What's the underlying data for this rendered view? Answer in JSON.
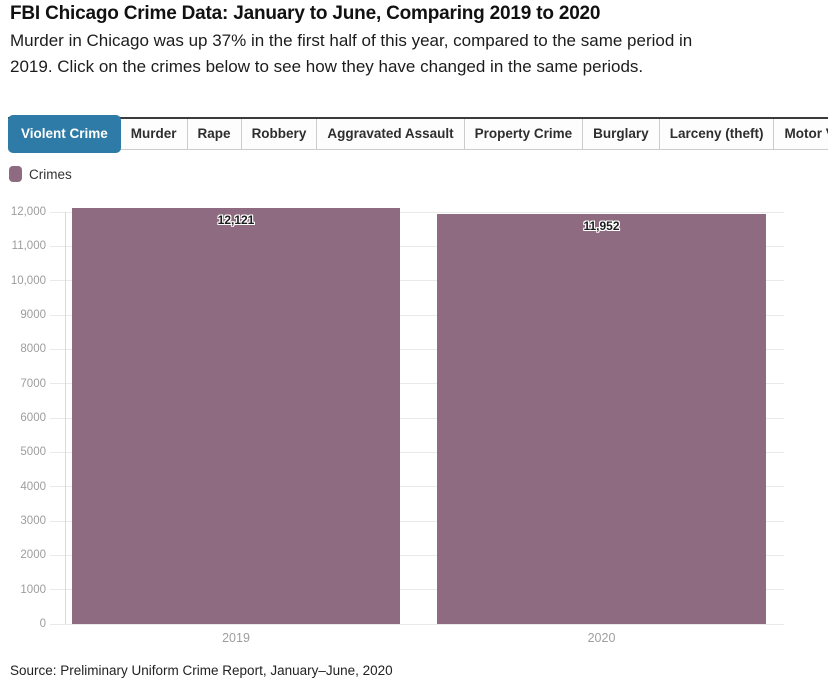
{
  "header": {
    "title": "FBI Chicago Crime Data: January to June, Comparing 2019 to 2020",
    "subtitle": "Murder in Chicago was up 37% in the first half of this year, compared to the same period in 2019. Click on the crimes below to see how they have changed in the same periods."
  },
  "tabs": [
    {
      "label": "Violent Crime",
      "active": true
    },
    {
      "label": "Murder",
      "active": false
    },
    {
      "label": "Rape",
      "active": false
    },
    {
      "label": "Robbery",
      "active": false
    },
    {
      "label": "Aggravated Assault",
      "active": false
    },
    {
      "label": "Property Crime",
      "active": false
    },
    {
      "label": "Burglary",
      "active": false
    },
    {
      "label": "Larceny (theft)",
      "active": false
    },
    {
      "label": "Motor Vehicle Theft",
      "active": false
    }
  ],
  "legend": {
    "label": "Crimes",
    "color": "#8f6b81"
  },
  "chart_data": {
    "type": "bar",
    "title": "",
    "series_name": "Crimes",
    "categories": [
      "2019",
      "2020"
    ],
    "values": [
      12121,
      11952
    ],
    "value_labels": [
      "12,121",
      "11,952"
    ],
    "xlabel": "",
    "ylabel": "",
    "ylim": [
      0,
      12000
    ],
    "ytick_step": 1000,
    "ytick_labels": [
      "0",
      "1000",
      "2000",
      "3000",
      "4000",
      "5000",
      "6000",
      "7000",
      "8000",
      "9000",
      "10,000",
      "11,000",
      "12,000"
    ],
    "grid": true,
    "legend_position": "top-left",
    "bar_color": "#8f6b81"
  },
  "colors": {
    "active_tab": "#2d7ba6",
    "bar": "#8f6b81"
  },
  "footer": {
    "source": "Source: Preliminary Uniform Crime Report, January–June, 2020"
  }
}
